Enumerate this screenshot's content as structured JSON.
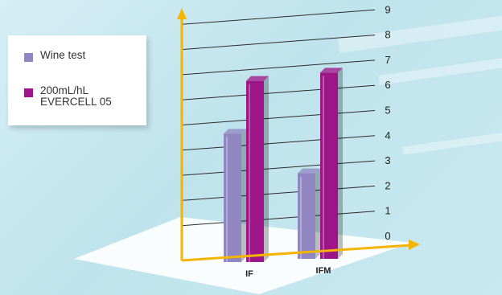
{
  "chart_data": {
    "type": "bar",
    "categories": [
      "IF",
      "IFM"
    ],
    "series": [
      {
        "name": "Wine test",
        "values": [
          5.1,
          3.4
        ],
        "color": "#8f86c2"
      },
      {
        "name": "200mL/hL\nEVERCELL 05",
        "values": [
          7.2,
          7.4
        ],
        "color": "#9e1489"
      }
    ],
    "yticks": [
      0,
      1,
      2,
      3,
      4,
      5,
      6,
      7,
      8,
      9
    ],
    "ylim": [
      0,
      9
    ],
    "title": "",
    "xlabel": "",
    "ylabel": "",
    "grid": true,
    "legend_position": "top-left",
    "axis_color": "#f5b400"
  },
  "legend": {
    "items": [
      {
        "label": "Wine test",
        "color": "#8f86c2"
      },
      {
        "label": "200mL/hL\nEVERCELL 05",
        "color": "#9e1489"
      }
    ]
  }
}
